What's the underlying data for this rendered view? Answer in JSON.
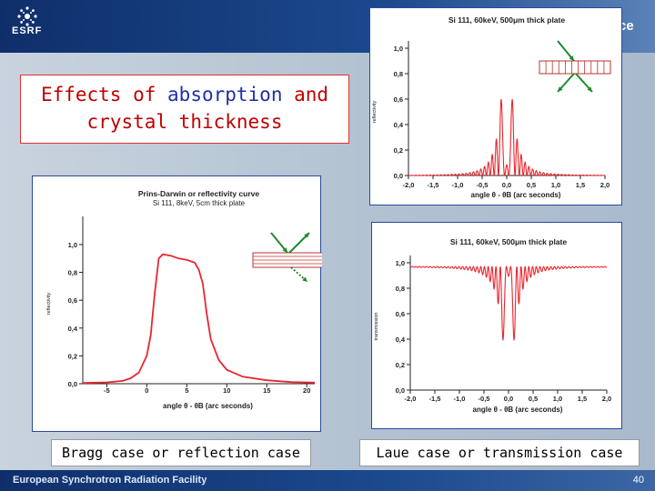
{
  "header": {
    "logo_text": "ESRF",
    "tail_text": "ce"
  },
  "title": {
    "line1_red": "Effects of ",
    "line1_blue": "absorption",
    "line1_red2": " and",
    "line2": "crystal thickness"
  },
  "captions": {
    "bragg": "Bragg case or reflection case",
    "laue": "Laue case or transmission case"
  },
  "footer": {
    "text": "European Synchrotron Radiation Facility",
    "page": "40"
  },
  "colors": {
    "curve": "#e8272f",
    "arrow": "#1f8a2e",
    "plate_line": "#c03030"
  },
  "chart_data": [
    {
      "id": "bragg",
      "type": "line",
      "title": "Prins-Darwin or reflectivity curve",
      "subtitle": "Si 111, 8keV, 5cm thick plate",
      "xlabel": "angle θ - θB (arc seconds)",
      "ylabel": "reflectivity",
      "xlim": [
        -8,
        21
      ],
      "ylim": [
        0,
        1.15
      ],
      "xticks": [
        "-5",
        "0",
        "5",
        "10",
        "15",
        "20"
      ],
      "xtick_values": [
        -5,
        0,
        5,
        10,
        15,
        20
      ],
      "yticks": [
        "0,0",
        "0,2",
        "0,4",
        "0,6",
        "0,8",
        "1,0"
      ],
      "ytick_values": [
        0,
        0.2,
        0.4,
        0.6,
        0.8,
        1.0
      ],
      "series": [
        {
          "points": [
            [
              -8,
              0.005
            ],
            [
              -5,
              0.01
            ],
            [
              -3,
              0.02
            ],
            [
              -2,
              0.04
            ],
            [
              -1,
              0.08
            ],
            [
              0,
              0.2
            ],
            [
              0.5,
              0.35
            ],
            [
              1,
              0.65
            ],
            [
              1.5,
              0.9
            ],
            [
              2,
              0.93
            ],
            [
              3,
              0.92
            ],
            [
              4,
              0.9
            ],
            [
              5,
              0.89
            ],
            [
              6,
              0.87
            ],
            [
              6.5,
              0.82
            ],
            [
              7,
              0.72
            ],
            [
              7.5,
              0.5
            ],
            [
              8,
              0.32
            ],
            [
              9,
              0.17
            ],
            [
              10,
              0.1
            ],
            [
              12,
              0.05
            ],
            [
              15,
              0.025
            ],
            [
              18,
              0.012
            ],
            [
              21,
              0.008
            ]
          ]
        }
      ]
    },
    {
      "id": "laue-refl",
      "type": "line",
      "title": "Si 111, 60keV, 500μm thick plate",
      "xlabel": "angle θ - θB (arc seconds)",
      "ylabel": "reflectivity",
      "xlim": [
        -2.0,
        2.0
      ],
      "ylim": [
        0,
        1.0
      ],
      "xticks": [
        "-2,0",
        "-1,5",
        "-1,0",
        "-0,5",
        "0,0",
        "0,5",
        "1,0",
        "1,5",
        "2,0"
      ],
      "xtick_values": [
        -2,
        -1.5,
        -1,
        -0.5,
        0,
        0.5,
        1,
        1.5,
        2
      ],
      "yticks": [
        "0,0",
        "0,2",
        "0,4",
        "0,6",
        "0,8",
        "1,0"
      ],
      "ytick_values": [
        0,
        0.2,
        0.4,
        0.6,
        0.8,
        1.0
      ],
      "curve_model": "pendellosung_reflect"
    },
    {
      "id": "laue-trans",
      "type": "line",
      "title": "Si 111, 60keV, 500μm thick plate",
      "xlabel": "angle θ - θB (arc seconds)",
      "ylabel": "transmission",
      "xlim": [
        -2.0,
        2.0
      ],
      "ylim": [
        0,
        1.0
      ],
      "xticks": [
        "-2,0",
        "-1,5",
        "-1,0",
        "-0,5",
        "0,0",
        "0,5",
        "1,0",
        "1,5",
        "2,0"
      ],
      "xtick_values": [
        -2,
        -1.5,
        -1,
        -0.5,
        0,
        0.5,
        1,
        1.5,
        2
      ],
      "yticks": [
        "0,0",
        "0,2",
        "0,4",
        "0,6",
        "0,8",
        "1,0"
      ],
      "ytick_values": [
        0,
        0.2,
        0.4,
        0.6,
        0.8,
        1.0
      ],
      "curve_model": "pendellosung_transmit"
    }
  ]
}
